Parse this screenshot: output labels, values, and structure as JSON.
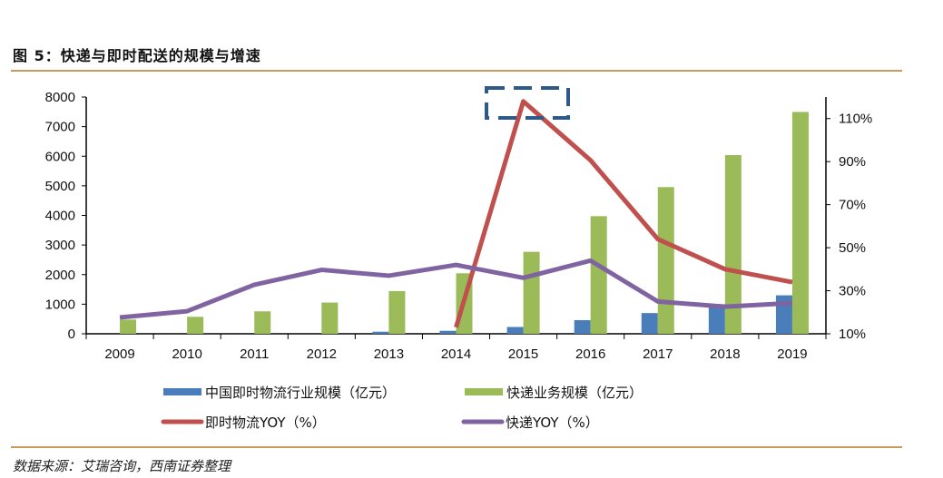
{
  "title": "图 5：快递与即时配送的规模与增速",
  "source": "数据来源：艾瑞咨询，西南证券整理",
  "colors": {
    "instant_scale": "#4a7ebb",
    "express_scale": "#9bbb59",
    "instant_yoy": "#c0504d",
    "express_yoy": "#8064a2",
    "rule": "#c99a5c",
    "annotation_box": "#2e5a8a"
  },
  "chart_data": {
    "type": "bar",
    "categories": [
      "2009",
      "2010",
      "2011",
      "2012",
      "2013",
      "2014",
      "2015",
      "2016",
      "2017",
      "2018",
      "2019"
    ],
    "left_axis": {
      "range": [
        0,
        8000
      ],
      "ticks": [
        "0",
        "1000",
        "2000",
        "3000",
        "4000",
        "5000",
        "6000",
        "7000",
        "8000"
      ]
    },
    "right_axis": {
      "range": [
        10,
        120
      ],
      "ticks": [
        "10%",
        "30%",
        "50%",
        "70%",
        "90%",
        "110%"
      ]
    },
    "grid": false,
    "legend_placement": "bottom",
    "series": [
      {
        "name": "中国即时物流行业规模（亿元）",
        "type": "bar",
        "axis": "left",
        "values": [
          null,
          null,
          null,
          null,
          70,
          100,
          230,
          460,
          700,
          1000,
          1300
        ]
      },
      {
        "name": "快递业务规模（亿元）",
        "type": "bar",
        "axis": "left",
        "values": [
          479,
          574,
          758,
          1055,
          1442,
          2045,
          2770,
          3974,
          4957,
          6038,
          7497
        ]
      },
      {
        "name": "即时物流YOY（%）",
        "type": "line",
        "axis": "right",
        "values": [
          null,
          null,
          null,
          null,
          null,
          13,
          118,
          90.6,
          54,
          40,
          34
        ]
      },
      {
        "name": "快递YOY（%）",
        "type": "line",
        "axis": "right",
        "values": [
          17.6,
          20.5,
          32.8,
          39.7,
          37,
          42,
          36,
          44,
          25,
          22.6,
          24.3
        ]
      }
    ],
    "annotation": "dashed box highlighting the 2015 peak of 即时物流YOY"
  }
}
